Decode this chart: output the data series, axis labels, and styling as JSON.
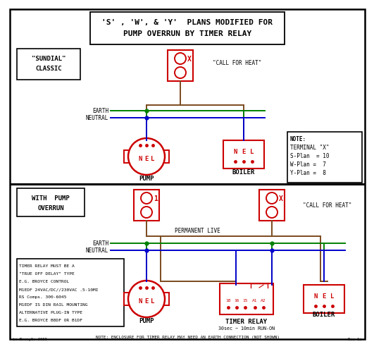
{
  "bg_color": "#ffffff",
  "brown": "#7B4A1E",
  "green": "#008000",
  "blue": "#0000CC",
  "red": "#CC0000",
  "black": "#000000",
  "title_line1": "'S' , 'W', & 'Y'  PLANS MODIFIED FOR",
  "title_line2": "PUMP OVERRUN BY TIMER RELAY",
  "sundial_line1": "\"SUNDIAL\"",
  "sundial_line2": "CLASSIC",
  "call_for_heat": "\"CALL FOR HEAT\"",
  "earth_label": "EARTH",
  "neutral_label": "NEUTRAL",
  "pump_label": "PUMP",
  "boiler_label": "BOILER",
  "note_title": "NOTE:",
  "note_line1": "TERMINAL \"X\"",
  "note_line2": "S-Plan  = 10",
  "note_line3": "W-Plan =  7",
  "note_line4": "Y-Plan =  8",
  "with_pump_line1": "WITH  PUMP",
  "with_pump_line2": "OVERRUN",
  "perm_live": "PERMANENT LIVE",
  "timer_relay_label": "TIMER RELAY",
  "timer_relay_sub": "30sec ~ 10min RUN-ON",
  "note2_lines": [
    "TIMER RELAY MUST BE A",
    "\"TRUE OFF DELAY\" TYPE",
    "E.G. BROYCE CONTROL",
    "M1EDF 24VAC/DC//230VAC .5-10MI",
    "RS Comps. 300-6045",
    "M1EDF IS DIN RAIL MOUNTING",
    "ALTERNATIVE PLUG-IN TYPE",
    "E.G. BROYCE B8DF OR B1DF"
  ],
  "bottom_note": "NOTE: ENCLOSURE FOR TIMER RELAY MAY NEED AN EARTH CONNECTION (NOT SHOWN)",
  "byline": "in BrenySc 2009",
  "rev": "Rev 1a"
}
